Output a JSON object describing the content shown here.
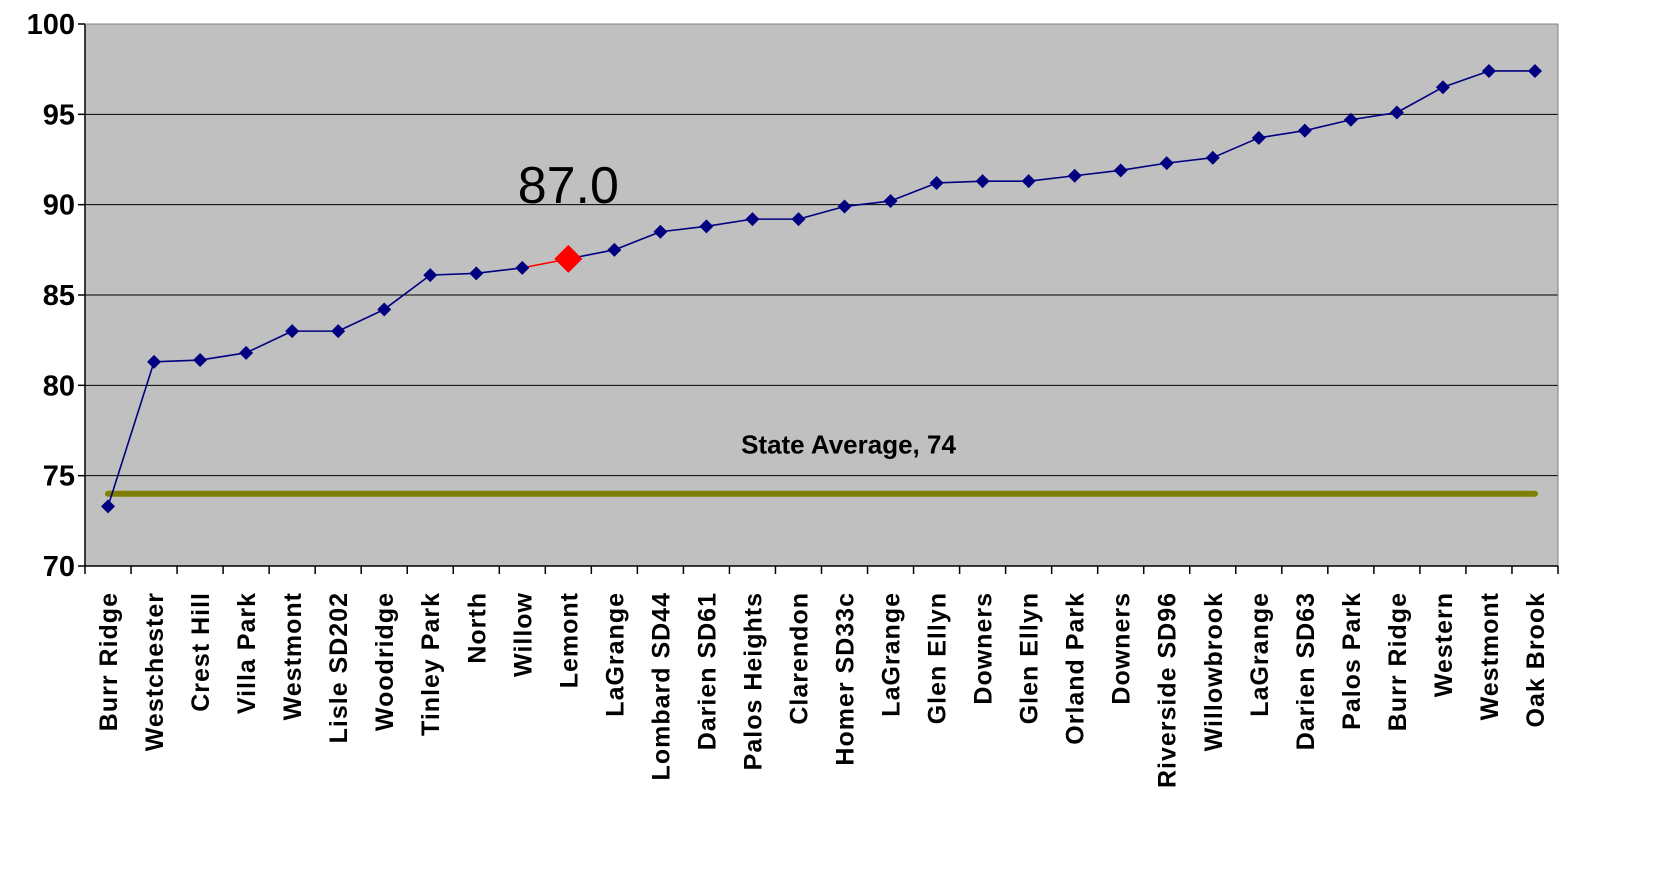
{
  "chart_data": {
    "type": "line",
    "categories": [
      "Burr Ridge",
      "Westchester",
      "Crest Hill",
      "Villa Park",
      "Westmont",
      "Lisle SD202",
      "Woodridge",
      "Tinley Park",
      "North",
      "Willow",
      "Lemont",
      "LaGrange",
      "Lombard SD44",
      "Darien SD61",
      "Palos Heights",
      "Clarendon",
      "Homer SD33c",
      "LaGrange",
      "Glen Ellyn",
      "Downers",
      "Glen Ellyn",
      "Orland Park",
      "Downers",
      "Riverside SD96",
      "Willowbrook",
      "LaGrange",
      "Darien SD63",
      "Palos Park",
      "Burr Ridge",
      "Western",
      "Westmont",
      "Oak Brook"
    ],
    "series": [
      {
        "values": [
          73.3,
          81.3,
          81.4,
          81.8,
          83.0,
          83.0,
          84.2,
          86.1,
          86.2,
          86.5,
          87.0,
          87.5,
          88.5,
          88.8,
          89.2,
          89.2,
          89.9,
          90.2,
          91.2,
          91.3,
          91.3,
          91.6,
          91.9,
          92.3,
          92.6,
          93.7,
          94.1,
          94.7,
          95.1,
          96.5,
          97.4,
          97.4
        ],
        "color": "#000080"
      }
    ],
    "highlight": {
      "index": 10,
      "label": "87.0",
      "color": "#ff0000"
    },
    "reference_line": {
      "value": 74,
      "label": "State Average, 74",
      "color": "#808000"
    },
    "ylim": [
      70,
      100
    ],
    "yticks": [
      "70",
      "75",
      "80",
      "85",
      "90",
      "95",
      "100"
    ],
    "grid": true,
    "plot_background": "#c0c0c0",
    "title": "",
    "xlabel": "",
    "ylabel": ""
  }
}
